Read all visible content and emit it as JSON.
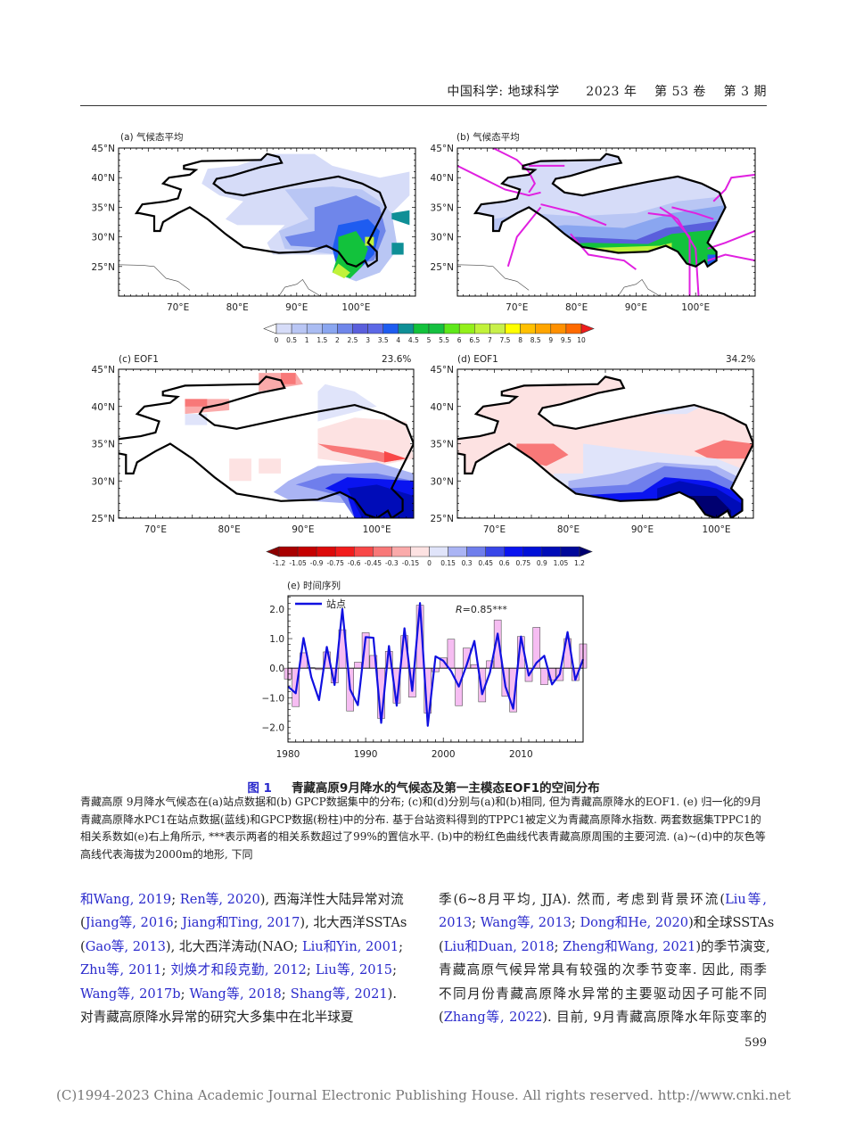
{
  "header": {
    "running_head": "中国科学: 地球科学      2023 年    第 53 卷    第 3 期"
  },
  "figure": {
    "panels": [
      {
        "label": "(a) 气候态平均",
        "percent": ""
      },
      {
        "label": "(b) 气候态平均",
        "percent": ""
      },
      {
        "label": "(c) EOF1",
        "percent": "23.6%"
      },
      {
        "label": "(d) EOF1",
        "percent": "34.2%"
      }
    ],
    "map_top": {
      "lat_ticks": [
        "45°N",
        "40°N",
        "35°N",
        "30°N",
        "25°N"
      ],
      "lon_ticks": [
        "70°E",
        "80°E",
        "90°E",
        "100°E"
      ]
    },
    "map_bottom": {
      "lat_ticks": [
        "45°N",
        "40°N",
        "35°N",
        "30°N",
        "25°N"
      ],
      "lon_ticks": [
        "70°E",
        "80°E",
        "90°E",
        "100°E"
      ]
    },
    "colorbar_precip": {
      "labels": [
        "0",
        "0.5",
        "1",
        "1.5",
        "2",
        "2.5",
        "3",
        "3.5",
        "4",
        "4.5",
        "5",
        "5.5",
        "6",
        "6.5",
        "7",
        "7.5",
        "8",
        "8.5",
        "9",
        "9.5",
        "10"
      ],
      "colors": [
        "#ffffff",
        "#d6dcf8",
        "#b9c6f4",
        "#aabcf2",
        "#8aa6f0",
        "#6f86ea",
        "#5a5fdc",
        "#5c68e6",
        "#1e5cf0",
        "#0f8f96",
        "#12c23c",
        "#15c040",
        "#5ee81a",
        "#93f01a",
        "#c1f23a",
        "#c8f04a",
        "#ffff00",
        "#ffc000",
        "#ffa500",
        "#ff9000",
        "#ff6a00",
        "#ee1c1c"
      ]
    },
    "colorbar_eof": {
      "labels": [
        "-1.2",
        "-1.05",
        "-0.9",
        "-0.75",
        "-0.6",
        "-0.45",
        "-0.3",
        "-0.15",
        "0",
        "0.15",
        "0.3",
        "0.45",
        "0.6",
        "0.75",
        "0.9",
        "1.05",
        "1.2"
      ],
      "colors": [
        "#8c0000",
        "#a80000",
        "#c40000",
        "#dc0a0a",
        "#f21c1c",
        "#f84848",
        "#f87878",
        "#faaaaa",
        "#fde2e2",
        "#e0e4fa",
        "#aab4f4",
        "#6f7eec",
        "#3846e8",
        "#0a14f0",
        "#0010d8",
        "#000cb8",
        "#00089a",
        "#000070"
      ]
    },
    "chart_data": {
      "type": "bar+line",
      "title": "(e) 时间序列",
      "x": [
        1980,
        1981,
        1982,
        1983,
        1984,
        1985,
        1986,
        1987,
        1988,
        1989,
        1990,
        1991,
        1992,
        1993,
        1994,
        1995,
        1996,
        1997,
        1998,
        1999,
        2000,
        2001,
        2002,
        2003,
        2004,
        2005,
        2006,
        2007,
        2008,
        2009,
        2010,
        2011,
        2012,
        2013,
        2014,
        2015,
        2016,
        2017,
        2018
      ],
      "series": [
        {
          "name": "站点",
          "kind": "line",
          "color": "#1010e0",
          "values": [
            -0.62,
            -0.85,
            1.02,
            -0.3,
            -1.08,
            0.72,
            -0.57,
            2.0,
            -0.72,
            -1.25,
            1.05,
            1.03,
            -1.85,
            0.75,
            -1.27,
            1.35,
            -0.77,
            2.2,
            -1.95,
            0.4,
            0.25,
            -0.1,
            -0.62,
            0.1,
            0.92,
            -0.88,
            -0.15,
            1.17,
            -0.62,
            -1.37,
            1.07,
            -0.25,
            0.18,
            0.42,
            -0.55,
            -0.2,
            1.22,
            -0.4,
            0.3
          ]
        },
        {
          "kind": "bar",
          "color": "#f6bdf2",
          "values": [
            -0.37,
            -1.3,
            0.52,
            0.02,
            -0.05,
            0.55,
            -0.5,
            1.3,
            -1.45,
            0.2,
            1.2,
            0.43,
            -1.7,
            0.57,
            -1.18,
            1.1,
            -0.98,
            2.13,
            -1.52,
            -0.12,
            0.35,
            0.98,
            -1.27,
            0.68,
            0.12,
            -1.14,
            0.25,
            1.63,
            -0.95,
            -1.48,
            1.07,
            -0.45,
            1.38,
            -0.56,
            -0.4,
            -0.42,
            1.0,
            -0.42,
            0.82
          ]
        }
      ],
      "x_ticks": [
        "1980",
        "1990",
        "2000",
        "2010"
      ],
      "y_ticks": [
        "2.0",
        "1.0",
        "0.0",
        "−1.0",
        "−2.0"
      ],
      "ylim": [
        -2.5,
        2.45
      ],
      "xlim": [
        1980,
        2018
      ],
      "annotation_r": "R",
      "annotation_value": "=0.85***",
      "legend_label": "站点",
      "legend_position": "top-left"
    },
    "caption_number": "图 1",
    "caption_title": "青藏高原9月降水的气候态及第一主模态EOF1的空间分布",
    "caption_body": "青藏高原 9月降水气候态在(a)站点数据和(b) GPCP数据集中的分布; (c)和(d)分别与(a)和(b)相同, 但为青藏高原降水的EOF1. (e) 归一化的9月青藏高原降水PC1在站点数据(蓝线)和GPCP数据(粉柱)中的分布. 基于台站资料得到的TPPC1被定义为青藏高原降水指数. 两套数据集TPPC1的相关系数如(e)右上角所示, ***表示两者的相关系数超过了99%的置信水平. (b)中的粉红色曲线代表青藏高原周围的主要河流. (a)~(d)中的灰色等高线代表海拔为2000m的地形, 下同"
  },
  "body": {
    "left": [
      [
        {
          "t": "和Wang, 2019",
          "l": 1
        },
        {
          "t": "; ",
          "l": 0
        },
        {
          "t": "Ren等, 2020",
          "l": 1
        },
        {
          "t": "), 西海洋性大陆异常对流",
          "l": 0
        }
      ],
      [
        {
          "t": "(",
          "l": 0
        },
        {
          "t": "Jiang等, 2016",
          "l": 1
        },
        {
          "t": "; ",
          "l": 0
        },
        {
          "t": "Jiang和Ting, 2017",
          "l": 1
        },
        {
          "t": "), 北大西洋SSTAs",
          "l": 0
        }
      ],
      [
        {
          "t": "(",
          "l": 0
        },
        {
          "t": "Gao等, 2013",
          "l": 1
        },
        {
          "t": "), 北大西洋涛动(NAO; ",
          "l": 0
        },
        {
          "t": "Liu和Yin, 2001",
          "l": 1
        },
        {
          "t": ";",
          "l": 0
        }
      ],
      [
        {
          "t": "Zhu等, 2011",
          "l": 1
        },
        {
          "t": "; ",
          "l": 0
        },
        {
          "t": "刘焕才和段克勤, 2012",
          "l": 1
        },
        {
          "t": "; ",
          "l": 0
        },
        {
          "t": "Liu等, 2015",
          "l": 1
        },
        {
          "t": ";",
          "l": 0
        }
      ],
      [
        {
          "t": "Wang等, 2017b",
          "l": 1
        },
        {
          "t": "; ",
          "l": 0
        },
        {
          "t": "Wang等, 2018",
          "l": 1
        },
        {
          "t": "; ",
          "l": 0
        },
        {
          "t": "Shang等, 2021",
          "l": 1
        },
        {
          "t": ").",
          "l": 0
        }
      ],
      [
        {
          "t": "    对青藏高原降水异常的研究大多集中在北半球夏",
          "l": 0
        }
      ]
    ],
    "right": [
      [
        {
          "t": "季(6~8月平均, JJA). 然而, 考虑到背景环流(",
          "l": 0
        },
        {
          "t": "Liu等,",
          "l": 1
        }
      ],
      [
        {
          "t": "2013",
          "l": 1
        },
        {
          "t": "; ",
          "l": 0
        },
        {
          "t": "Wang等, 2013",
          "l": 1
        },
        {
          "t": "; ",
          "l": 0
        },
        {
          "t": "Dong和He, 2020",
          "l": 1
        },
        {
          "t": ")和全球SSTAs",
          "l": 0
        }
      ],
      [
        {
          "t": "(",
          "l": 0
        },
        {
          "t": "Liu和Duan, 2018",
          "l": 1
        },
        {
          "t": "; ",
          "l": 0
        },
        {
          "t": "Zheng和Wang, 2021",
          "l": 1
        },
        {
          "t": ")的季节演变,",
          "l": 0
        }
      ],
      [
        {
          "t": "青藏高原气候异常具有较强的次季节变率. 因此, 雨季",
          "l": 0
        }
      ],
      [
        {
          "t": "不同月份青藏高原降水异常的主要驱动因子可能不同",
          "l": 0
        }
      ],
      [
        {
          "t": "(",
          "l": 0
        },
        {
          "t": "Zhang等, 2022",
          "l": 1
        },
        {
          "t": "). 目前, 9月青藏高原降水年际变率的",
          "l": 0
        }
      ]
    ]
  },
  "page_number": "599",
  "footer": "(C)1994-2023 China Academic Journal Electronic Publishing House. All rights reserved.    http://www.cnki.net"
}
